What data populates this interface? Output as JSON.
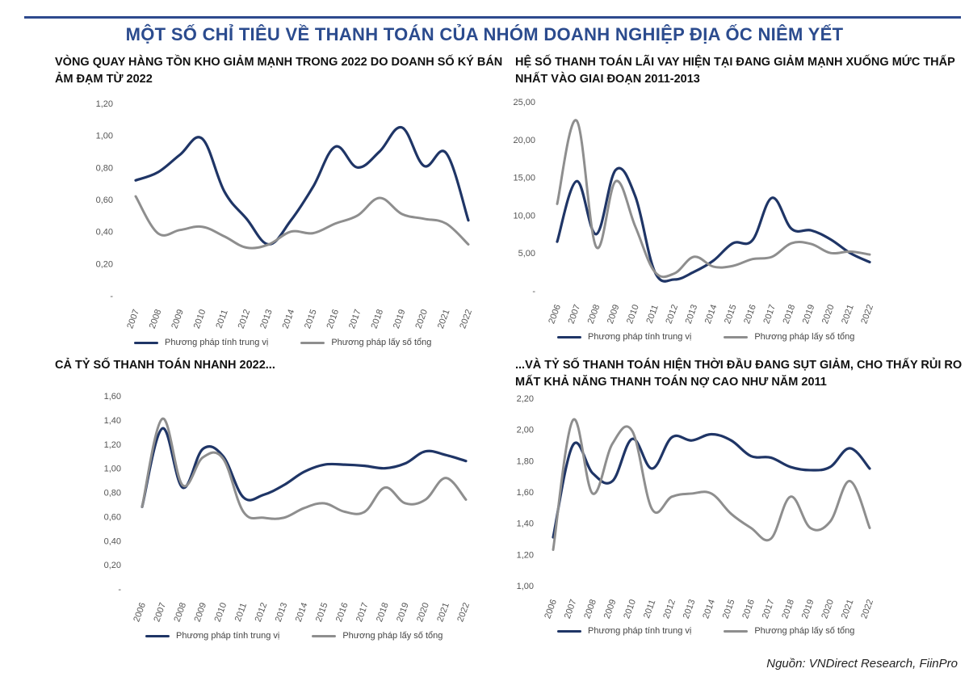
{
  "header": {
    "title": "MỘT SỐ CHỈ TIÊU VỀ THANH TOÁN CỦA NHÓM DOANH NGHIỆP ĐỊA ỐC NIÊM YẾT"
  },
  "source": "Nguồn: VNDirect Research, FiinPro",
  "colors": {
    "median": "#1f3566",
    "total": "#8e8e8e",
    "accent": "#2b4b8e"
  },
  "legend": {
    "median": "Phương pháp tính trung vị",
    "total": "Phương pháp lấy số tổng"
  },
  "chart_data": [
    {
      "id": "inventory-turnover",
      "type": "line",
      "title": "VÒNG QUAY HÀNG TỒN KHO GIẢM MẠNH TRONG 2022 DO DOANH SỐ KÝ BÁN ẢM ĐẠM TỪ 2022",
      "x": [
        "2007",
        "2008",
        "2009",
        "2010",
        "2011",
        "2012",
        "2013",
        "2014",
        "2015",
        "2016",
        "2017",
        "2018",
        "2019",
        "2020",
        "2021",
        "2022"
      ],
      "ylim": [
        0,
        1.2
      ],
      "yticks": [
        "-",
        "0,20",
        "0,40",
        "0,60",
        "0,80",
        "1,00",
        "1,20"
      ],
      "grid": false,
      "legend_position": "bottom",
      "series": [
        {
          "name": "Phương pháp tính trung vị",
          "values": [
            0.72,
            0.77,
            0.88,
            0.98,
            0.65,
            0.48,
            0.32,
            0.47,
            0.68,
            0.93,
            0.8,
            0.9,
            1.05,
            0.81,
            0.89,
            0.47
          ]
        },
        {
          "name": "Phương pháp lấy số tổng",
          "values": [
            0.62,
            0.39,
            0.41,
            0.43,
            0.37,
            0.3,
            0.32,
            0.4,
            0.39,
            0.45,
            0.5,
            0.61,
            0.51,
            0.48,
            0.45,
            0.32
          ]
        }
      ]
    },
    {
      "id": "interest-coverage",
      "type": "line",
      "title": "HỆ SỐ THANH TOÁN LÃI VAY HIỆN TẠI ĐANG GIẢM MẠNH XUỐNG MỨC THẤP NHẤT VÀO GIAI ĐOẠN 2011-2013",
      "x": [
        "2006",
        "2007",
        "2008",
        "2009",
        "2010",
        "2011",
        "2012",
        "2013",
        "2014",
        "2015",
        "2016",
        "2017",
        "2018",
        "2019",
        "2020",
        "2021",
        "2022"
      ],
      "ylim": [
        0,
        25
      ],
      "yticks": [
        "-",
        "5,00",
        "10,00",
        "15,00",
        "20,00",
        "25,00"
      ],
      "grid": false,
      "legend_position": "bottom",
      "series": [
        {
          "name": "Phương pháp tính trung vị",
          "values": [
            6.5,
            14.5,
            7.5,
            16.0,
            12.5,
            2.5,
            1.5,
            2.5,
            4.0,
            6.3,
            6.7,
            12.3,
            8.2,
            8.0,
            6.8,
            5.0,
            3.8
          ]
        },
        {
          "name": "Phương pháp lấy số tổng",
          "values": [
            11.5,
            22.5,
            5.8,
            14.5,
            8.5,
            2.5,
            2.3,
            4.5,
            3.2,
            3.3,
            4.2,
            4.5,
            6.3,
            6.2,
            5.0,
            5.2,
            4.8
          ]
        }
      ]
    },
    {
      "id": "quick-ratio",
      "type": "line",
      "title": "CẢ TỶ SỐ THANH TOÁN NHANH 2022...",
      "x": [
        "2006",
        "2007",
        "2008",
        "2009",
        "2010",
        "2011",
        "2012",
        "2013",
        "2014",
        "2015",
        "2016",
        "2017",
        "2018",
        "2019",
        "2020",
        "2021",
        "2022"
      ],
      "ylim": [
        0,
        1.6
      ],
      "yticks": [
        "-",
        "0,20",
        "0,40",
        "0,60",
        "0,80",
        "1,00",
        "1,20",
        "1,40",
        "1,60"
      ],
      "grid": false,
      "legend_position": "bottom",
      "series": [
        {
          "name": "Phương pháp tính trung vị",
          "values": [
            0.68,
            1.33,
            0.84,
            1.16,
            1.1,
            0.76,
            0.78,
            0.86,
            0.97,
            1.03,
            1.03,
            1.02,
            1.0,
            1.04,
            1.14,
            1.11,
            1.06
          ]
        },
        {
          "name": "Phương pháp lấy số tổng",
          "values": [
            0.68,
            1.41,
            0.86,
            1.09,
            1.08,
            0.64,
            0.59,
            0.59,
            0.67,
            0.71,
            0.64,
            0.64,
            0.84,
            0.71,
            0.74,
            0.92,
            0.74
          ]
        }
      ]
    },
    {
      "id": "current-ratio",
      "type": "line",
      "title": "...VÀ TỶ SỐ THANH TOÁN HIỆN THỜI ĐẦU ĐANG SỤT GIẢM, CHO THẤY RỦI RO MẤT KHẢ NĂNG THANH TOÁN NỢ CAO NHƯ NĂM 2011",
      "x": [
        "2006",
        "2007",
        "2008",
        "2009",
        "2010",
        "2011",
        "2012",
        "2013",
        "2014",
        "2015",
        "2016",
        "2017",
        "2018",
        "2019",
        "2020",
        "2021",
        "2022"
      ],
      "ylim": [
        1.0,
        2.2
      ],
      "yticks": [
        "1,00",
        "1,20",
        "1,40",
        "1,60",
        "1,80",
        "2,00",
        "2,20"
      ],
      "grid": false,
      "legend_position": "bottom",
      "series": [
        {
          "name": "Phương pháp tính trung vị",
          "values": [
            1.31,
            1.9,
            1.72,
            1.67,
            1.94,
            1.75,
            1.95,
            1.93,
            1.97,
            1.93,
            1.83,
            1.82,
            1.76,
            1.74,
            1.76,
            1.88,
            1.75
          ]
        },
        {
          "name": "Phương pháp lấy số tổng",
          "values": [
            1.23,
            2.06,
            1.59,
            1.91,
            1.99,
            1.49,
            1.57,
            1.59,
            1.59,
            1.46,
            1.37,
            1.3,
            1.57,
            1.37,
            1.41,
            1.67,
            1.37
          ]
        }
      ]
    }
  ]
}
